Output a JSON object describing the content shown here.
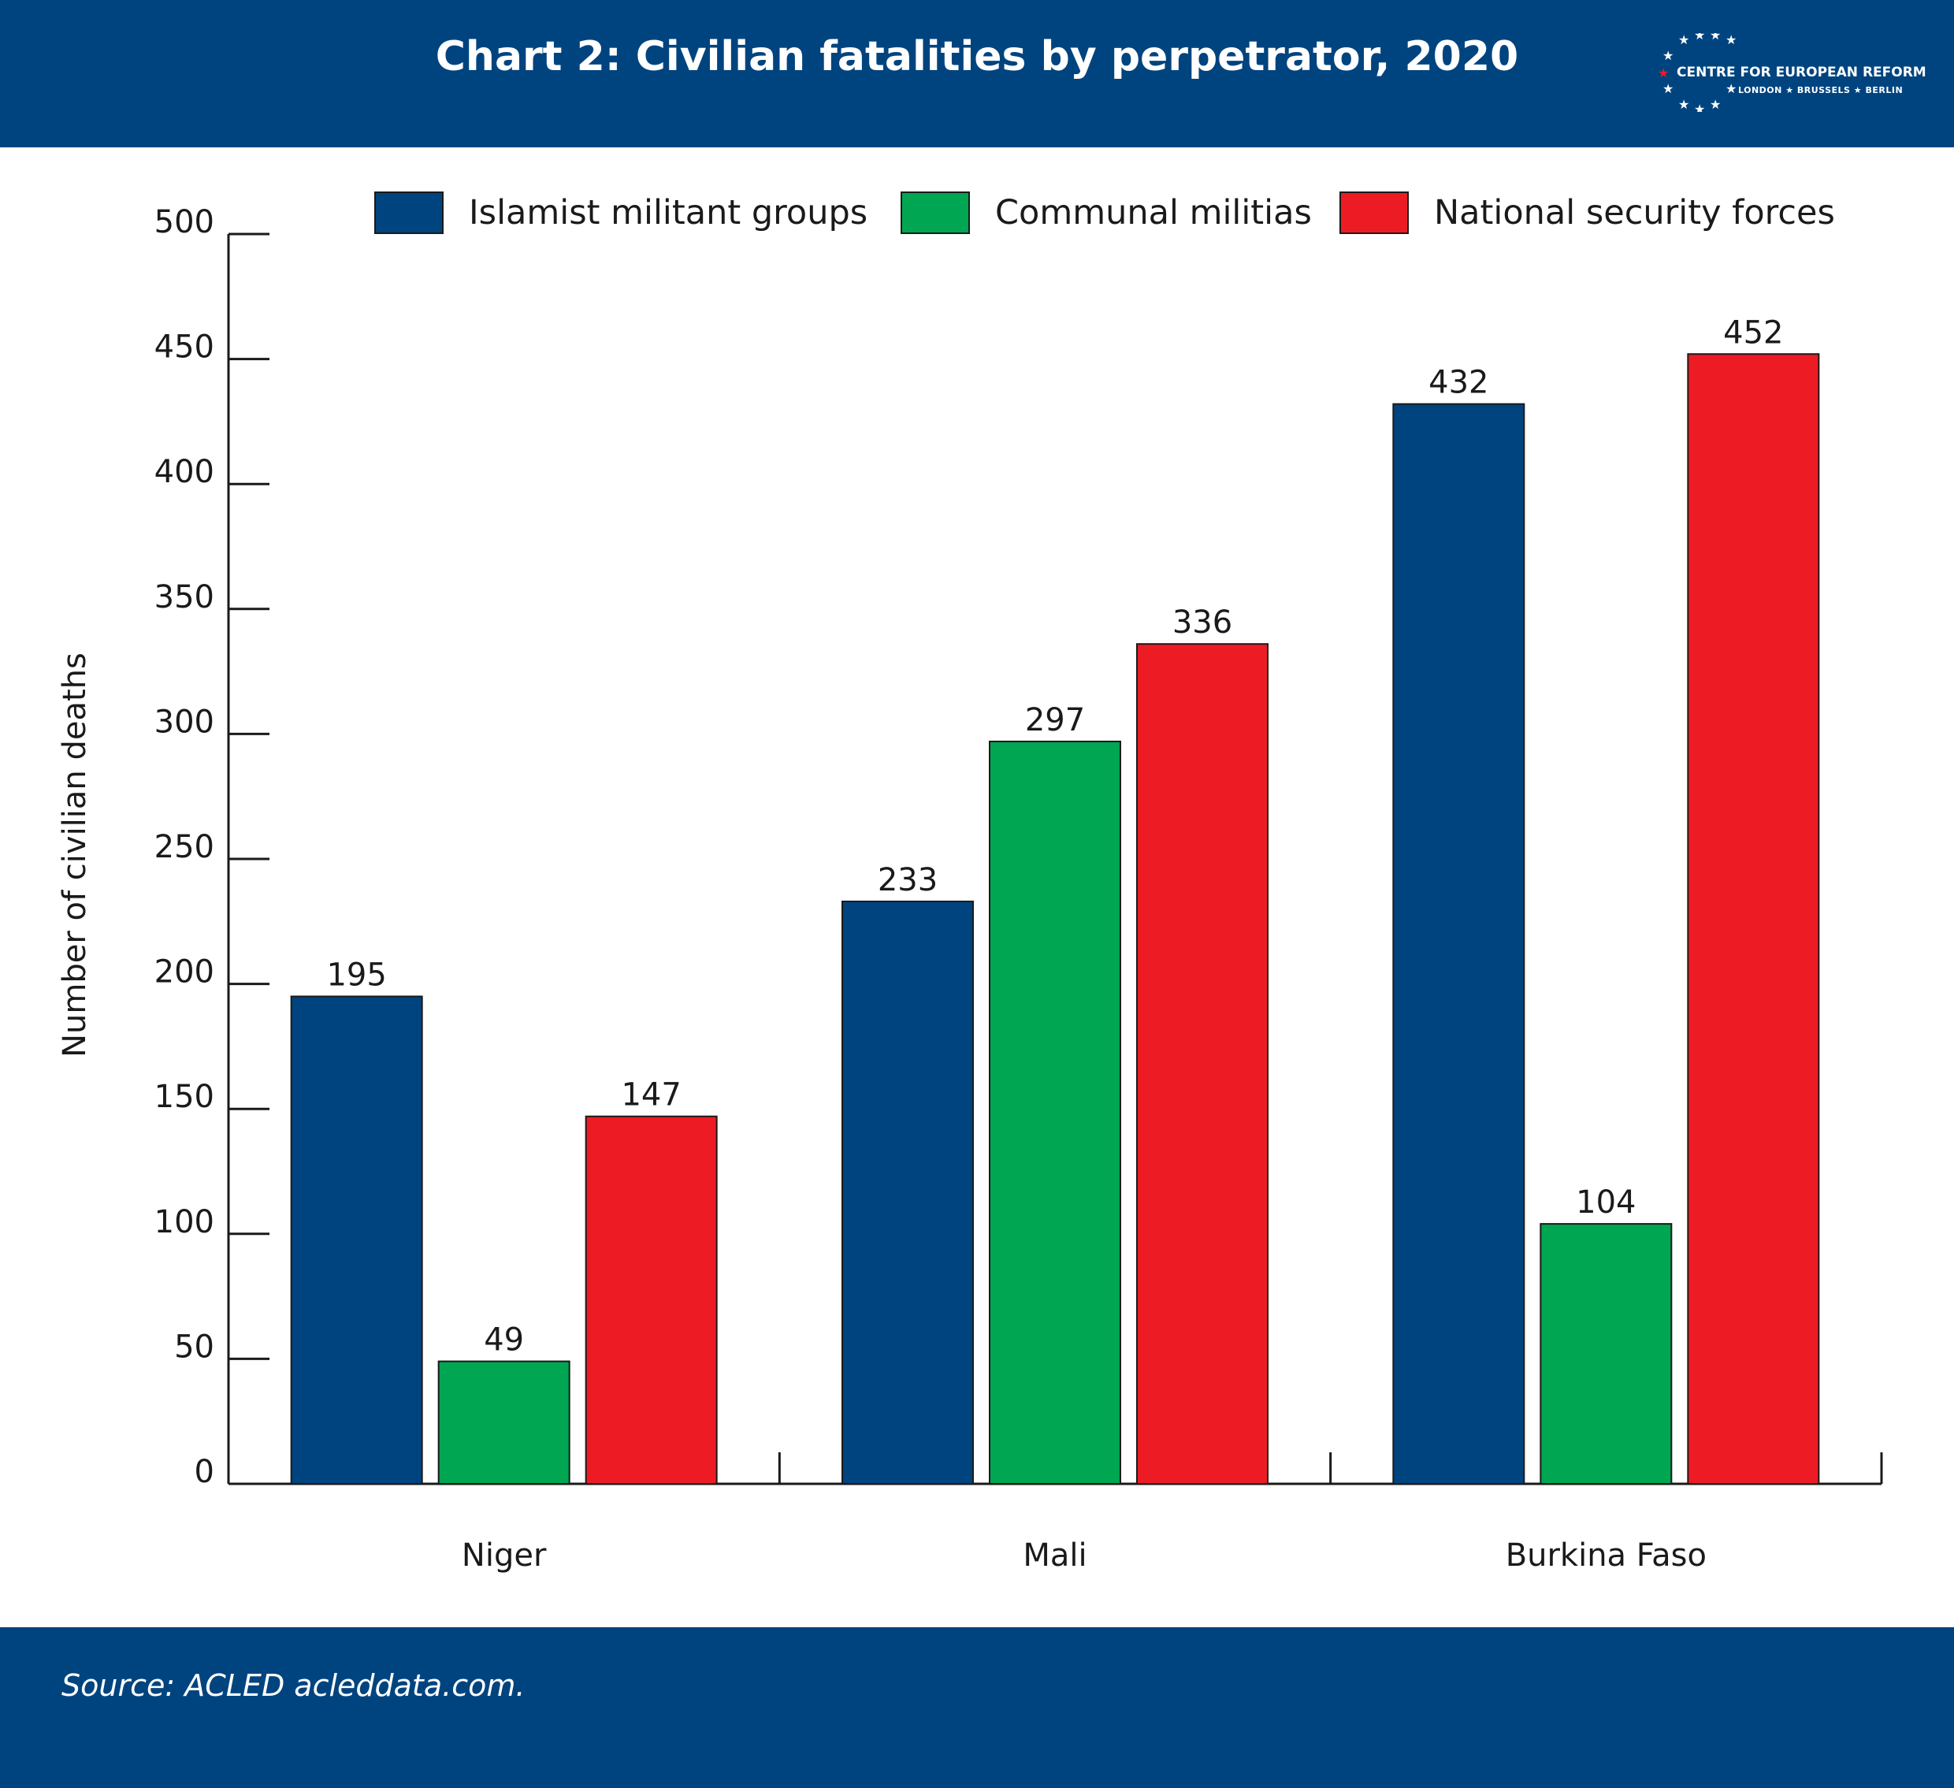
{
  "header": {
    "title": "Chart 2: Civilian fatalities by perpetrator, 2020",
    "logo_text": "CENTRE FOR EUROPEAN REFORM",
    "logo_sub": "LONDON ★ BRUSSELS ★ BERLIN"
  },
  "footer": {
    "source": "Source: ACLED acleddata.com."
  },
  "chart_data": {
    "type": "bar",
    "title": "Chart 2: Civilian fatalities by perpetrator, 2020",
    "categories": [
      "Niger",
      "Mali",
      "Burkina Faso"
    ],
    "series": [
      {
        "name": "Islamist militant groups",
        "color": "#00447f",
        "values": [
          195,
          233,
          432
        ]
      },
      {
        "name": "Communal militias",
        "color": "#00a651",
        "values": [
          49,
          297,
          104
        ]
      },
      {
        "name": "National security forces",
        "color": "#ed1c24",
        "values": [
          147,
          336,
          452
        ]
      }
    ],
    "xlabel": "",
    "ylabel": "Number of civilian deaths",
    "ylim": [
      0,
      500
    ],
    "yticks": [
      "0",
      "50",
      "100",
      "150",
      "200",
      "250",
      "300",
      "350",
      "400",
      "450",
      "500"
    ],
    "grid": false,
    "legend_position": "top"
  }
}
